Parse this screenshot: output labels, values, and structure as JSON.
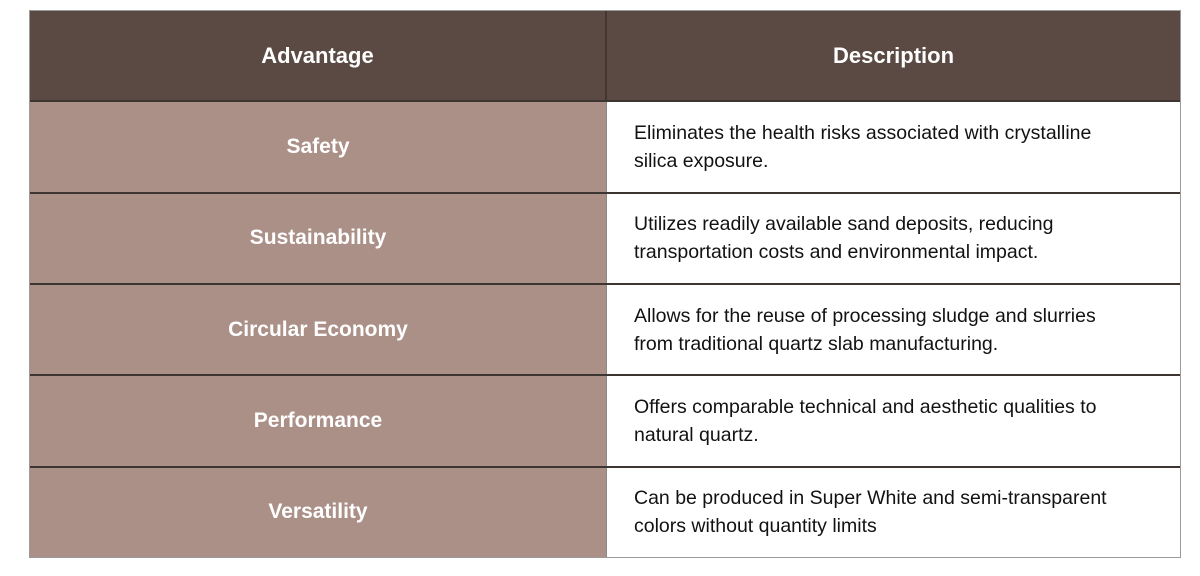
{
  "table": {
    "columns": [
      {
        "label": "Advantage"
      },
      {
        "label": "Description"
      }
    ],
    "rows": [
      {
        "advantage": "Safety",
        "description": "Eliminates the health risks associated with crystalline silica exposure."
      },
      {
        "advantage": "Sustainability",
        "description": "Utilizes readily available sand deposits, reducing transportation costs and environmental impact."
      },
      {
        "advantage": "Circular Economy",
        "description": "Allows for the reuse of processing sludge and slurries from traditional quartz slab manufacturing."
      },
      {
        "advantage": "Performance",
        "description": "Offers comparable technical and aesthetic qualities to natural quartz."
      },
      {
        "advantage": "Versatility",
        "description": "Can be produced in Super White and semi-transparent colors without quantity limits"
      }
    ],
    "colors": {
      "header_bg": "#5a4a43",
      "header_text": "#ffffff",
      "advantage_bg": "#ab9088",
      "advantage_text": "#ffffff",
      "description_bg": "#ffffff",
      "description_text": "#121212",
      "row_separator": "#3d3531",
      "outer_border": "#9b9b9b"
    }
  }
}
